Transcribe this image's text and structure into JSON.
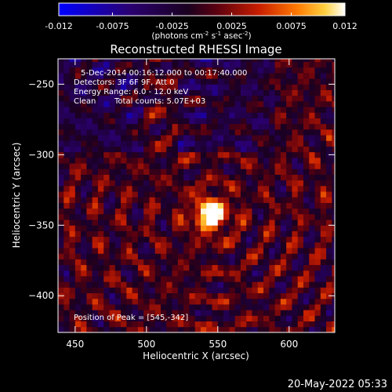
{
  "chart_data": {
    "type": "heatmap",
    "title": "Reconstructed RHESSI Image",
    "xlabel": "Heliocentric X (arcsec)",
    "ylabel": "Heliocentric Y (arcsec)",
    "xlim": [
      438,
      632
    ],
    "ylim": [
      -426,
      -232
    ],
    "x_ticks": [
      450,
      500,
      550,
      600
    ],
    "y_ticks": [
      -250,
      -300,
      -350,
      -400
    ],
    "grid": false,
    "colorbar": {
      "ticks": [
        "-0.012",
        "-0.0075",
        "-0.0025",
        "0.0025",
        "0.0075",
        "0.012"
      ],
      "tick_values": [
        -0.012,
        -0.0075,
        -0.0025,
        0.0025,
        0.0075,
        0.012
      ],
      "range": [
        -0.012,
        0.012
      ],
      "label_main": "(photons cm",
      "label_sup1": "-2",
      "label_mid1": " s",
      "label_sup2": "-1",
      "label_mid2": " asec",
      "label_sup3": "-2",
      "label_end": ")",
      "colors": [
        "#0000ff",
        "#2a0070",
        "#1a0020",
        "#5a0010",
        "#c81e00",
        "#ff7800",
        "#ffd040",
        "#ffffff"
      ]
    },
    "annotations": {
      "time_range": "5-Dec-2014 00:16:12.000 to 00:17:40.000",
      "detectors": "Detectors: 3F 6F 9F, Att 0",
      "energy": "Energy Range: 6.0 - 12.0 keV",
      "clean": "Clean",
      "counts": "Total counts: 5.07E+03",
      "peak": "Position of Peak = [545,-342]"
    },
    "peak": {
      "x": 545,
      "y": -342
    },
    "pixel_size_arcsec": 4
  },
  "footer": {
    "date": "20-May-2022 05:33"
  }
}
